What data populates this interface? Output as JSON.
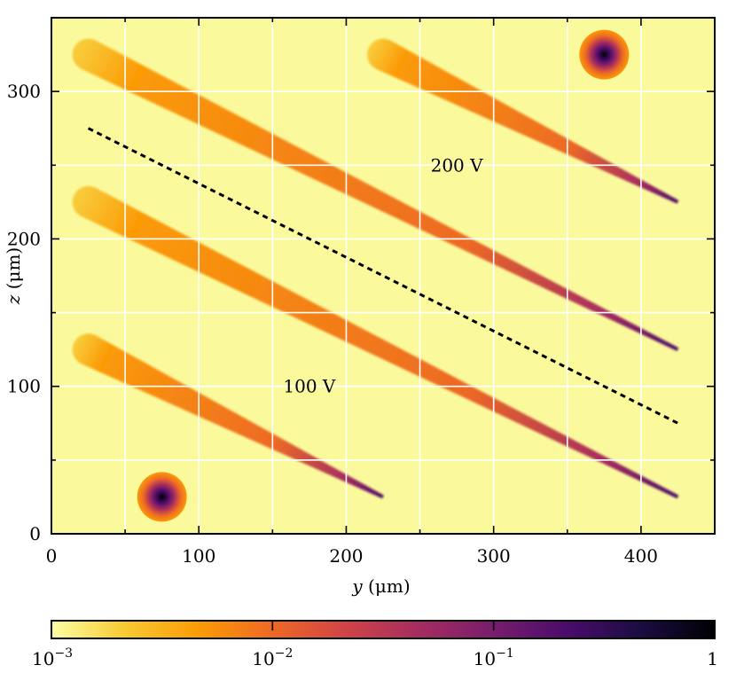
{
  "chart_data": {
    "type": "heatmap",
    "title": "",
    "xlabel": {
      "var": "y",
      "unit": "(μm)"
    },
    "ylabel": {
      "var": "z",
      "unit": "(μm)"
    },
    "xlim": [
      0,
      450
    ],
    "ylim": [
      0,
      350
    ],
    "x_ticks": [
      0,
      100,
      200,
      300,
      400
    ],
    "y_ticks": [
      0,
      100,
      200,
      300
    ],
    "x_minor_ticks": [
      50,
      150,
      250,
      350
    ],
    "y_minor_ticks": [
      50,
      150,
      250
    ],
    "grid": true,
    "colorscale": {
      "name": "inferno_r",
      "scale": "log",
      "range": [
        0.001,
        1
      ],
      "tick_labels": [
        {
          "value": 0.001,
          "base": "10",
          "exp": "−3"
        },
        {
          "value": 0.01,
          "base": "10",
          "exp": "−2"
        },
        {
          "value": 0.1,
          "base": "10",
          "exp": "−1"
        },
        {
          "value": 1,
          "base": "1",
          "exp": ""
        }
      ],
      "stops": [
        "#fcffa4",
        "#f8c932",
        "#fb9b06",
        "#ed6925",
        "#cf4446",
        "#a52c60",
        "#781c6d",
        "#4a0c6b",
        "#1b0c41",
        "#000004"
      ]
    },
    "background_value": 0.001,
    "sources": [
      {
        "name": "source-100v",
        "y": 75,
        "z": 25,
        "peak": 1
      },
      {
        "name": "source-200v",
        "y": 375,
        "z": 325,
        "peak": 1
      }
    ],
    "tracks": [
      {
        "name": "track-1",
        "start": [
          25,
          125
        ],
        "end": [
          225,
          25
        ]
      },
      {
        "name": "track-2",
        "start": [
          25,
          225
        ],
        "end": [
          425,
          25
        ]
      },
      {
        "name": "track-3",
        "start": [
          25,
          325
        ],
        "end": [
          425,
          125
        ]
      },
      {
        "name": "track-4",
        "start": [
          225,
          325
        ],
        "end": [
          425,
          225
        ]
      }
    ],
    "dashed_line": {
      "start": [
        25,
        275
      ],
      "end": [
        425,
        75
      ]
    },
    "annotations": [
      {
        "text": "100 V",
        "y": 175,
        "z": 100
      },
      {
        "text": "200 V",
        "y": 275,
        "z": 250
      }
    ]
  }
}
